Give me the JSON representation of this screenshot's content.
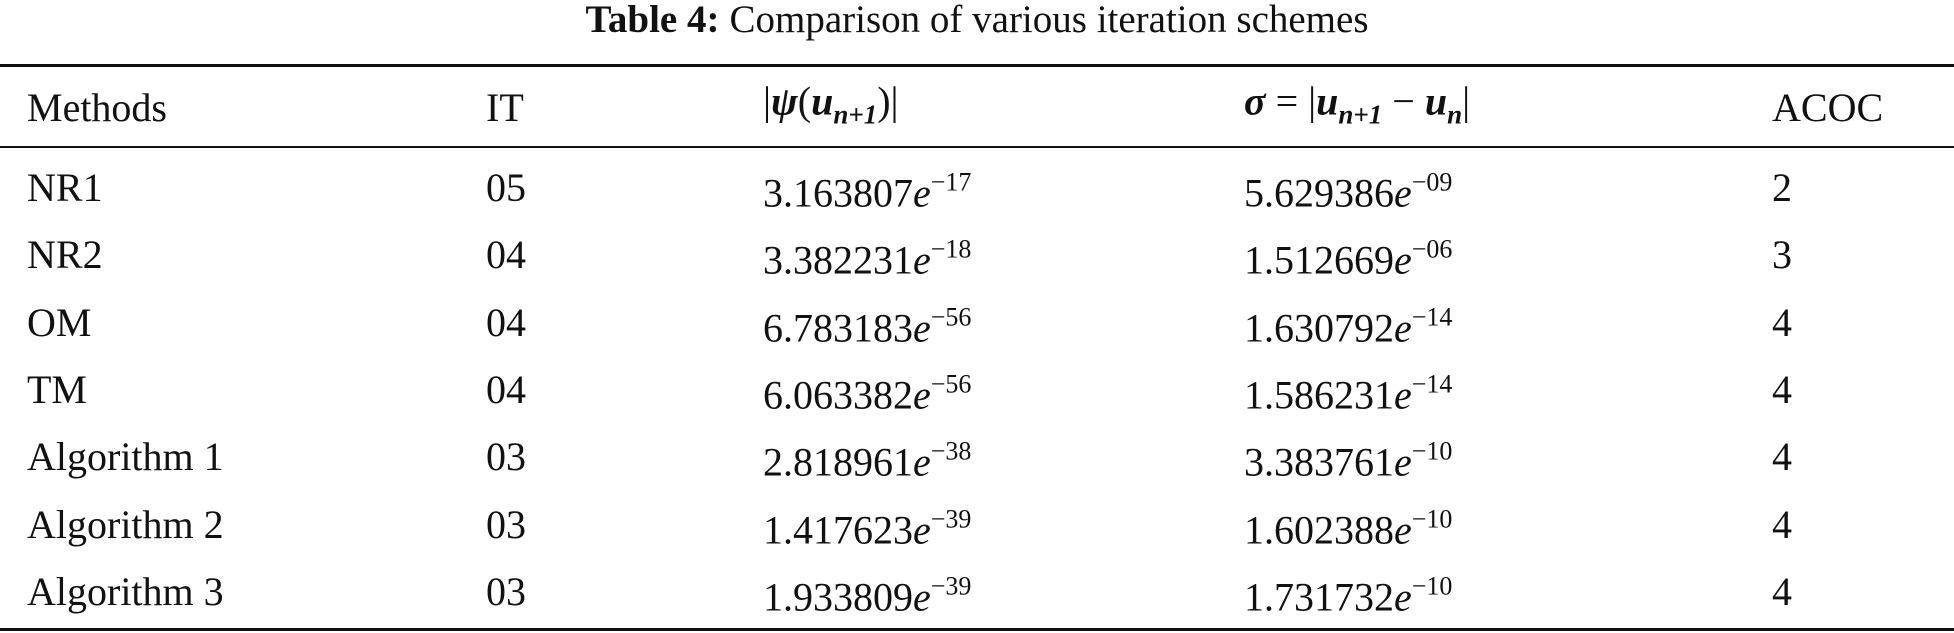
{
  "caption": {
    "label": "Table 4:",
    "text": "Comparison of various iteration schemes"
  },
  "table": {
    "headers": [
      [
        {
          "t": "Methods"
        }
      ],
      [
        {
          "t": "IT"
        }
      ],
      [
        {
          "t": "|"
        },
        {
          "t": "ψ",
          "f": "bi"
        },
        {
          "t": "("
        },
        {
          "t": "u",
          "f": "bi"
        },
        {
          "t": "n+1",
          "f": "sub"
        },
        {
          "t": ")|"
        }
      ],
      [
        {
          "t": "σ",
          "f": "bi"
        },
        {
          "t": " = |"
        },
        {
          "t": "u",
          "f": "bi"
        },
        {
          "t": "n+1",
          "f": "sub"
        },
        {
          "t": " − "
        },
        {
          "t": "u",
          "f": "bi"
        },
        {
          "t": "n",
          "f": "sub"
        },
        {
          "t": "|"
        }
      ],
      [
        {
          "t": "ACOC"
        }
      ]
    ],
    "rows": [
      {
        "method": "NR1",
        "it": "05",
        "psi": {
          "m": "3.163807",
          "b": "e",
          "x": "−17"
        },
        "sigma": {
          "m": "5.629386",
          "b": "e",
          "x": "−09"
        },
        "acoc": 2
      },
      {
        "method": "NR2",
        "it": "04",
        "psi": {
          "m": "3.382231",
          "b": "e",
          "x": "−18"
        },
        "sigma": {
          "m": "1.512669",
          "b": "e",
          "x": "−06"
        },
        "acoc": 3
      },
      {
        "method": "OM",
        "it": "04",
        "psi": {
          "m": "6.783183",
          "b": "e",
          "x": "−56"
        },
        "sigma": {
          "m": "1.630792",
          "b": "e",
          "x": "−14"
        },
        "acoc": 4
      },
      {
        "method": "TM",
        "it": "04",
        "psi": {
          "m": "6.063382",
          "b": "e",
          "x": "−56"
        },
        "sigma": {
          "m": "1.586231",
          "b": "e",
          "x": "−14"
        },
        "acoc": 4
      },
      {
        "method": "Algorithm 1",
        "it": "03",
        "psi": {
          "m": "2.818961",
          "b": "e",
          "x": "−38"
        },
        "sigma": {
          "m": "3.383761",
          "b": "e",
          "x": "−10"
        },
        "acoc": 4
      },
      {
        "method": "Algorithm 2",
        "it": "03",
        "psi": {
          "m": "1.417623",
          "b": "e",
          "x": "−39"
        },
        "sigma": {
          "m": "1.602388",
          "b": "e",
          "x": "−10"
        },
        "acoc": 4
      },
      {
        "method": "Algorithm 3",
        "it": "03",
        "psi": {
          "m": "1.933809",
          "b": "e",
          "x": "−39"
        },
        "sigma": {
          "m": "1.731732",
          "b": "e",
          "x": "−10"
        },
        "acoc": 4
      }
    ]
  }
}
